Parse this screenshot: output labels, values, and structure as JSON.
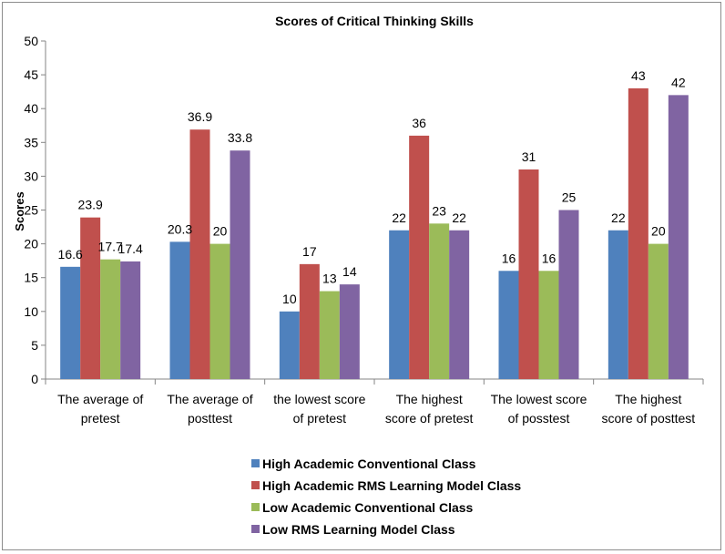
{
  "chart_data": {
    "type": "bar",
    "title": "Scores of Critical Thinking Skills",
    "xlabel": "",
    "ylabel": "Scores",
    "ylim": [
      0,
      50
    ],
    "yticks": [
      "0",
      "5",
      "10",
      "15",
      "20",
      "25",
      "30",
      "35",
      "40",
      "45",
      "50"
    ],
    "categories": [
      [
        "The average of",
        "pretest"
      ],
      [
        "The average of",
        "posttest"
      ],
      [
        "the lowest score",
        "of pretest"
      ],
      [
        "The highest",
        "score of pretest"
      ],
      [
        "The lowest score",
        "of posstest"
      ],
      [
        "The highest",
        "score of posttest"
      ]
    ],
    "series": [
      {
        "name": "High Academic Conventional Class",
        "color": "#4f81bd",
        "values": [
          16.6,
          20.3,
          10,
          22,
          16,
          22
        ]
      },
      {
        "name": "High Academic RMS Learning Model Class",
        "color": "#c0504d",
        "values": [
          23.9,
          36.9,
          17,
          36,
          31,
          43
        ]
      },
      {
        "name": "Low Academic Conventional Class",
        "color": "#9bbb59",
        "values": [
          17.7,
          20,
          13,
          23,
          16,
          20
        ]
      },
      {
        "name": "Low RMS Learning Model Class",
        "color": "#8064a2",
        "values": [
          17.4,
          33.8,
          14,
          22,
          25,
          42
        ]
      }
    ],
    "grid": false,
    "legend": "bottom"
  }
}
